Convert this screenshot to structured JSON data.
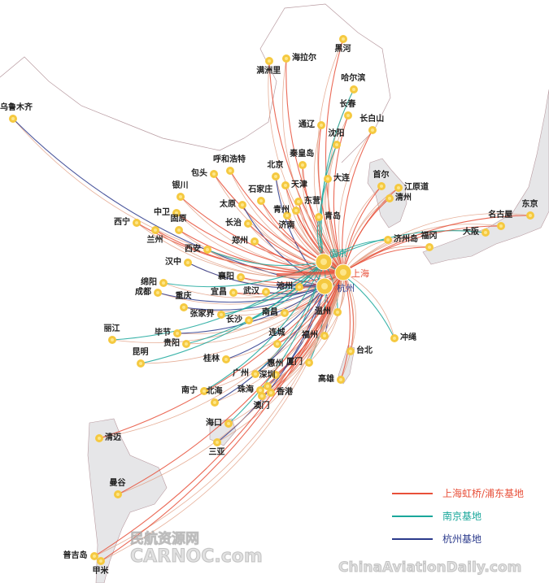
{
  "colors": {
    "shanghai": "#e8503a",
    "nanjing": "#1aa79b",
    "hangzhou": "#2b3a8c",
    "minor_route": "#e2a085",
    "city_dot": "#f5c940",
    "land": "#e6e6e8",
    "border": "#b89aa0"
  },
  "hubs": [
    {
      "name": "南京",
      "base": "nanjing"
    },
    {
      "name": "上海",
      "base": "shanghai"
    },
    {
      "name": "杭州",
      "base": "hangzhou"
    }
  ],
  "cities": [
    {
      "name": "乌鲁木齐",
      "base": "hangzhou"
    },
    {
      "name": "满洲里",
      "base": "shanghai"
    },
    {
      "name": "海拉尔",
      "base": "shanghai"
    },
    {
      "name": "黑河",
      "base": "shanghai"
    },
    {
      "name": "哈尔滨",
      "base": "nanjing"
    },
    {
      "name": "长春",
      "base": "shanghai"
    },
    {
      "name": "通辽",
      "base": "shanghai"
    },
    {
      "name": "长白山",
      "base": "shanghai"
    },
    {
      "name": "沈阳",
      "base": "nanjing"
    },
    {
      "name": "呼和浩特",
      "base": "shanghai"
    },
    {
      "name": "包头",
      "base": "shanghai"
    },
    {
      "name": "北京",
      "base": "hangzhou"
    },
    {
      "name": "秦皇岛",
      "base": "shanghai"
    },
    {
      "name": "天津",
      "base": "shanghai"
    },
    {
      "name": "大连",
      "base": "nanjing"
    },
    {
      "name": "银川",
      "base": "shanghai"
    },
    {
      "name": "石家庄",
      "base": "shanghai"
    },
    {
      "name": "东营",
      "base": "shanghai"
    },
    {
      "name": "中卫",
      "base": "shanghai"
    },
    {
      "name": "太原",
      "base": "hangzhou"
    },
    {
      "name": "青州",
      "base": "shanghai"
    },
    {
      "name": "济南",
      "base": "shanghai"
    },
    {
      "name": "青岛",
      "base": "nanjing"
    },
    {
      "name": "西宁",
      "base": "shanghai"
    },
    {
      "name": "兰州",
      "base": "shanghai"
    },
    {
      "name": "固原",
      "base": "shanghai"
    },
    {
      "name": "长治",
      "base": "shanghai"
    },
    {
      "name": "郑州",
      "base": "shanghai"
    },
    {
      "name": "首尔",
      "base": "shanghai"
    },
    {
      "name": "江原道",
      "base": "shanghai"
    },
    {
      "name": "清州",
      "base": "shanghai"
    },
    {
      "name": "济州岛",
      "base": "nanjing"
    },
    {
      "name": "福冈",
      "base": "shanghai"
    },
    {
      "name": "大阪",
      "base": "nanjing"
    },
    {
      "name": "名古屋",
      "base": "shanghai"
    },
    {
      "name": "东京",
      "base": "shanghai"
    },
    {
      "name": "西安",
      "base": "nanjing"
    },
    {
      "name": "汉中",
      "base": "hangzhou"
    },
    {
      "name": "襄阳",
      "base": "shanghai"
    },
    {
      "name": "绵阳",
      "base": "nanjing"
    },
    {
      "name": "成都",
      "base": "hangzhou"
    },
    {
      "name": "宜昌",
      "base": "shanghai"
    },
    {
      "name": "武汉",
      "base": "hangzhou"
    },
    {
      "name": "池州",
      "base": "shanghai"
    },
    {
      "name": "重庆",
      "base": "hangzhou"
    },
    {
      "name": "张家界",
      "base": "nanjing"
    },
    {
      "name": "长沙",
      "base": "nanjing"
    },
    {
      "name": "南昌",
      "base": "shanghai"
    },
    {
      "name": "温州",
      "base": "nanjing"
    },
    {
      "name": "丽江",
      "base": "nanjing"
    },
    {
      "name": "毕节",
      "base": "hangzhou"
    },
    {
      "name": "贵阳",
      "base": "nanjing"
    },
    {
      "name": "昆明",
      "base": "nanjing"
    },
    {
      "name": "连城",
      "base": "shanghai"
    },
    {
      "name": "福州",
      "base": "hangzhou"
    },
    {
      "name": "厦门",
      "base": "nanjing"
    },
    {
      "name": "台北",
      "base": "shanghai"
    },
    {
      "name": "桂林",
      "base": "hangzhou"
    },
    {
      "name": "广州",
      "base": "nanjing"
    },
    {
      "name": "惠州",
      "base": "shanghai"
    },
    {
      "name": "深圳",
      "base": "hangzhou"
    },
    {
      "name": "香港",
      "base": "shanghai"
    },
    {
      "name": "珠海",
      "base": "shanghai"
    },
    {
      "name": "澳门",
      "base": "shanghai"
    },
    {
      "name": "高雄",
      "base": "shanghai"
    },
    {
      "name": "冲绳",
      "base": "nanjing"
    },
    {
      "name": "南宁",
      "base": "nanjing"
    },
    {
      "name": "北海",
      "base": "hangzhou"
    },
    {
      "name": "海口",
      "base": "nanjing"
    },
    {
      "name": "三亚",
      "base": "hangzhou"
    },
    {
      "name": "清迈",
      "base": "shanghai"
    },
    {
      "name": "曼谷",
      "base": "shanghai"
    },
    {
      "name": "普吉岛",
      "base": "shanghai"
    },
    {
      "name": "甲米",
      "base": "shanghai"
    }
  ],
  "legend": [
    {
      "label": "上海虹桥/浦东基地",
      "base": "shanghai"
    },
    {
      "label": "南京基地",
      "base": "nanjing"
    },
    {
      "label": "杭州基地",
      "base": "hangzhou"
    }
  ],
  "watermarks": {
    "left_cn": "民航资源网",
    "left_en": "CARNOC.com",
    "right_en": "ChinaAviationDaily.com"
  }
}
